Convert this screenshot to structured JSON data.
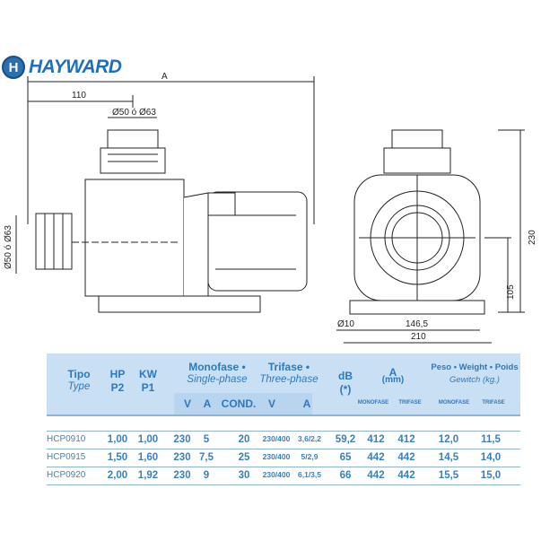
{
  "brand": "HAYWARD",
  "drawing": {
    "dim_A": "A",
    "dim_110": "110",
    "dim_port_top": "Ø50 ó Ø63",
    "dim_port_side": "Ø50 ó Ø63",
    "dim_230": "230",
    "dim_105": "105",
    "dim_d10": "Ø10",
    "dim_146": "146,5",
    "dim_210": "210"
  },
  "table": {
    "h_tipo": "Tipo",
    "h_type": "Type",
    "h_hp": "HP",
    "h_p2": "P2",
    "h_kw": "KW",
    "h_p1": "P1",
    "h_mono": "Monofase •",
    "h_single": "Single-phase",
    "h_tri": "Trifase •",
    "h_three": "Three-phase",
    "h_db": "dB",
    "h_db2": "(*)",
    "h_a": "A",
    "h_mm": "(mm)",
    "h_peso": "Peso • Weight • Poids",
    "h_gew": "Gewitch (kg.)",
    "sub_v": "V",
    "sub_a": "A",
    "sub_cond": "COND.",
    "sub_v2": "V",
    "sub_a2": "A",
    "sub_mono": "MONOFASE",
    "sub_tri": "TRIFASE",
    "sub_mono2": "MONOFASE",
    "sub_tri2": "TRIFASE",
    "rows": [
      {
        "type": "HCP0910",
        "hp": "1,00",
        "kw": "1,00",
        "v": "230",
        "a": "5",
        "cond": "20",
        "v3": "230/400",
        "a3": "3,6/2,2",
        "db": "59,2",
        "am": "412",
        "at": "412",
        "wm": "12,0",
        "wt": "11,5"
      },
      {
        "type": "HCP0915",
        "hp": "1,50",
        "kw": "1,60",
        "v": "230",
        "a": "7,5",
        "cond": "25",
        "v3": "230/400",
        "a3": "5/2,9",
        "db": "65",
        "am": "442",
        "at": "442",
        "wm": "14,5",
        "wt": "14,0"
      },
      {
        "type": "HCP0920",
        "hp": "2,00",
        "kw": "1,92",
        "v": "230",
        "a": "9",
        "cond": "30",
        "v3": "230/400",
        "a3": "6,1/3,5",
        "db": "66",
        "am": "442",
        "at": "442",
        "wm": "15,5",
        "wt": "15,0"
      }
    ]
  }
}
